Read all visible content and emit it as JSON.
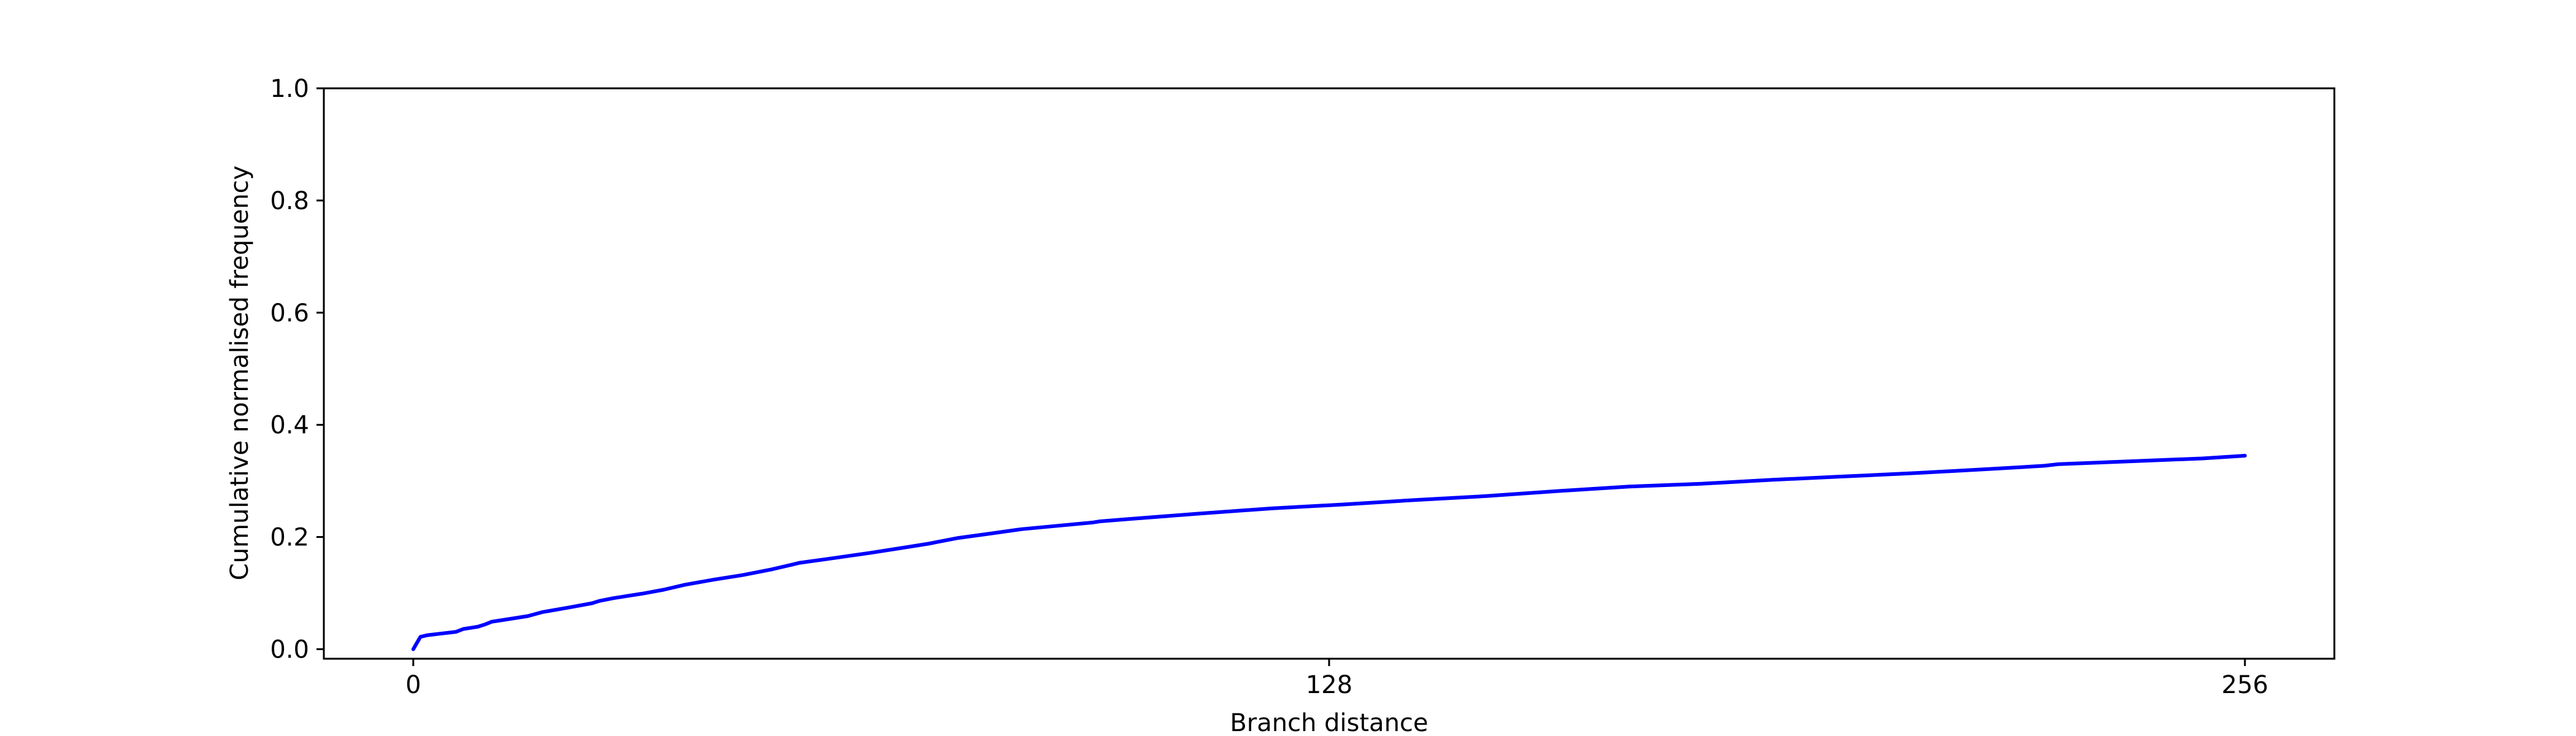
{
  "chart_data": {
    "type": "line",
    "title": "",
    "xlabel": "Branch distance",
    "ylabel": "Cumulative normalised frequency",
    "xlim": [
      -12.5,
      268.5
    ],
    "ylim": [
      -0.017,
      1.0
    ],
    "x_ticks": [
      0,
      128,
      256
    ],
    "x_tick_labels": [
      "0",
      "128",
      "256"
    ],
    "y_ticks": [
      0.0,
      0.2,
      0.4,
      0.6,
      0.8,
      1.0
    ],
    "y_tick_labels": [
      "0.0",
      "0.2",
      "0.4",
      "0.6",
      "0.8",
      "1.0"
    ],
    "grid": false,
    "legend": "none",
    "line_color": "#0000ff",
    "series": [
      {
        "x": [
          0,
          1,
          2,
          4,
          6,
          7,
          9,
          10,
          11,
          13,
          16,
          18,
          22,
          25,
          26,
          28,
          32,
          35,
          38,
          42,
          46,
          50,
          53,
          54,
          58,
          64,
          68,
          72,
          76,
          80,
          85,
          90,
          95,
          96,
          100,
          110,
          120,
          130,
          140,
          150,
          160,
          170,
          180,
          190,
          200,
          210,
          220,
          228,
          230,
          240,
          250,
          256
        ],
        "y": [
          0.0,
          0.022,
          0.025,
          0.028,
          0.031,
          0.036,
          0.04,
          0.044,
          0.049,
          0.053,
          0.059,
          0.066,
          0.075,
          0.082,
          0.086,
          0.091,
          0.099,
          0.106,
          0.115,
          0.124,
          0.132,
          0.142,
          0.151,
          0.154,
          0.161,
          0.172,
          0.18,
          0.188,
          0.198,
          0.205,
          0.214,
          0.22,
          0.226,
          0.228,
          0.232,
          0.242,
          0.251,
          0.258,
          0.266,
          0.273,
          0.282,
          0.29,
          0.295,
          0.302,
          0.308,
          0.314,
          0.321,
          0.327,
          0.33,
          0.335,
          0.34,
          0.345
        ]
      }
    ]
  }
}
